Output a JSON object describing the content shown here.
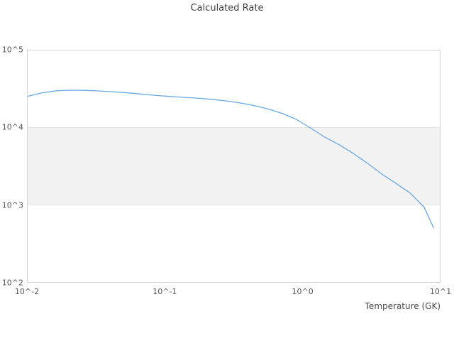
{
  "figure": {
    "title": "Calculated Rate",
    "x_axis_label": "Temperature (GK)"
  },
  "style": {
    "line_color": "#69a8e3",
    "band_fill": "#f2f2f2",
    "band_edge_color": "#e2e2e2",
    "spine_color": "#d4d4d4",
    "tick_text_color": "#555555",
    "title_color": "#3f3f3f",
    "background": "#ffffff"
  },
  "chart_data": {
    "type": "line",
    "title": "Calculated Rate",
    "xlabel": "Temperature (GK)",
    "ylabel": "",
    "x_scale": "log",
    "y_scale": "log",
    "xlim": [
      0.01,
      10
    ],
    "ylim": [
      100,
      100000
    ],
    "grid": false,
    "legend": false,
    "x_ticks": [
      {
        "label": "10^-2",
        "value": 0.01
      },
      {
        "label": "10^-1",
        "value": 0.1
      },
      {
        "label": "10^0",
        "value": 1
      },
      {
        "label": "10^1",
        "value": 10
      }
    ],
    "y_ticks": [
      {
        "label": "10^2",
        "value": 100
      },
      {
        "label": "10^3",
        "value": 1000
      },
      {
        "label": "10^4",
        "value": 10000
      },
      {
        "label": "10^5",
        "value": 100000
      }
    ],
    "highlight_band": {
      "y_min": 1000,
      "y_max": 10000
    },
    "series": [
      {
        "name": "calculated-rate",
        "x": [
          0.01,
          0.0127,
          0.0161,
          0.0204,
          0.0259,
          0.0327,
          0.0415,
          0.0527,
          0.0668,
          0.0847,
          0.107,
          0.136,
          0.173,
          0.219,
          0.277,
          0.352,
          0.446,
          0.566,
          0.718,
          0.91,
          1.15,
          1.46,
          1.85,
          2.35,
          2.98,
          3.78,
          4.79,
          6.08,
          7.7,
          9.0
        ],
        "y": [
          25400,
          28200,
          30000,
          30500,
          30400,
          29900,
          29200,
          28300,
          27200,
          26200,
          25400,
          24700,
          24100,
          23200,
          22200,
          20900,
          19300,
          17400,
          15200,
          12700,
          9850,
          7500,
          6010,
          4620,
          3440,
          2510,
          1900,
          1420,
          930,
          505
        ]
      }
    ]
  }
}
